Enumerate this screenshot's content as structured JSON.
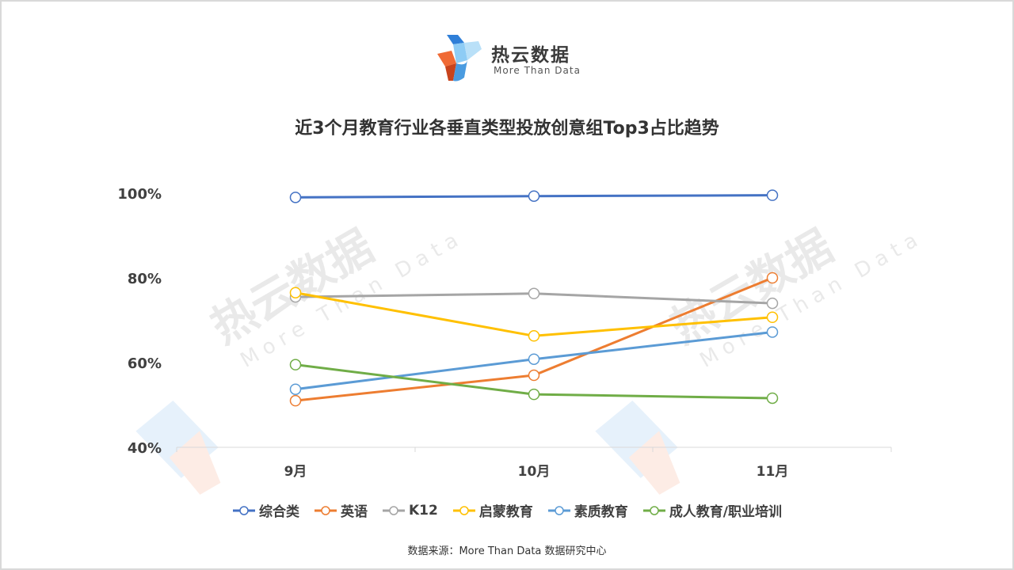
{
  "brand": {
    "name": "热云数据",
    "tagline": "More Than Data"
  },
  "watermark": {
    "name": "热云数据",
    "tagline": "More Than Data"
  },
  "source": "数据来源：More Than Data 数据研究中心",
  "colors": {
    "text": "#404040",
    "axis": "#d9d9d9"
  },
  "chart_data": {
    "type": "line",
    "title": "近3个月教育行业各垂直类型投放创意组Top3占比趋势",
    "categories": [
      "9月",
      "10月",
      "11月"
    ],
    "ylim": [
      40,
      100
    ],
    "yticks": [
      40,
      60,
      80,
      100
    ],
    "ytick_labels": [
      "40%",
      "60%",
      "80%",
      "100%"
    ],
    "grid": false,
    "legend_position": "bottom",
    "series": [
      {
        "name": "综合类",
        "color": "#4472C4",
        "values": [
          99.0,
          99.3,
          99.5
        ]
      },
      {
        "name": "英语",
        "color": "#ED7D31",
        "values": [
          51.0,
          57.0,
          80.0
        ]
      },
      {
        "name": "K12",
        "color": "#A5A5A5",
        "values": [
          75.5,
          76.3,
          74.0
        ]
      },
      {
        "name": "启蒙教育",
        "color": "#FFC000",
        "values": [
          76.5,
          66.3,
          70.7
        ]
      },
      {
        "name": "素质教育",
        "color": "#5B9BD5",
        "values": [
          53.7,
          60.8,
          67.2
        ]
      },
      {
        "name": "成人教育/职业培训",
        "color": "#70AD47",
        "values": [
          59.5,
          52.5,
          51.6
        ]
      }
    ]
  }
}
